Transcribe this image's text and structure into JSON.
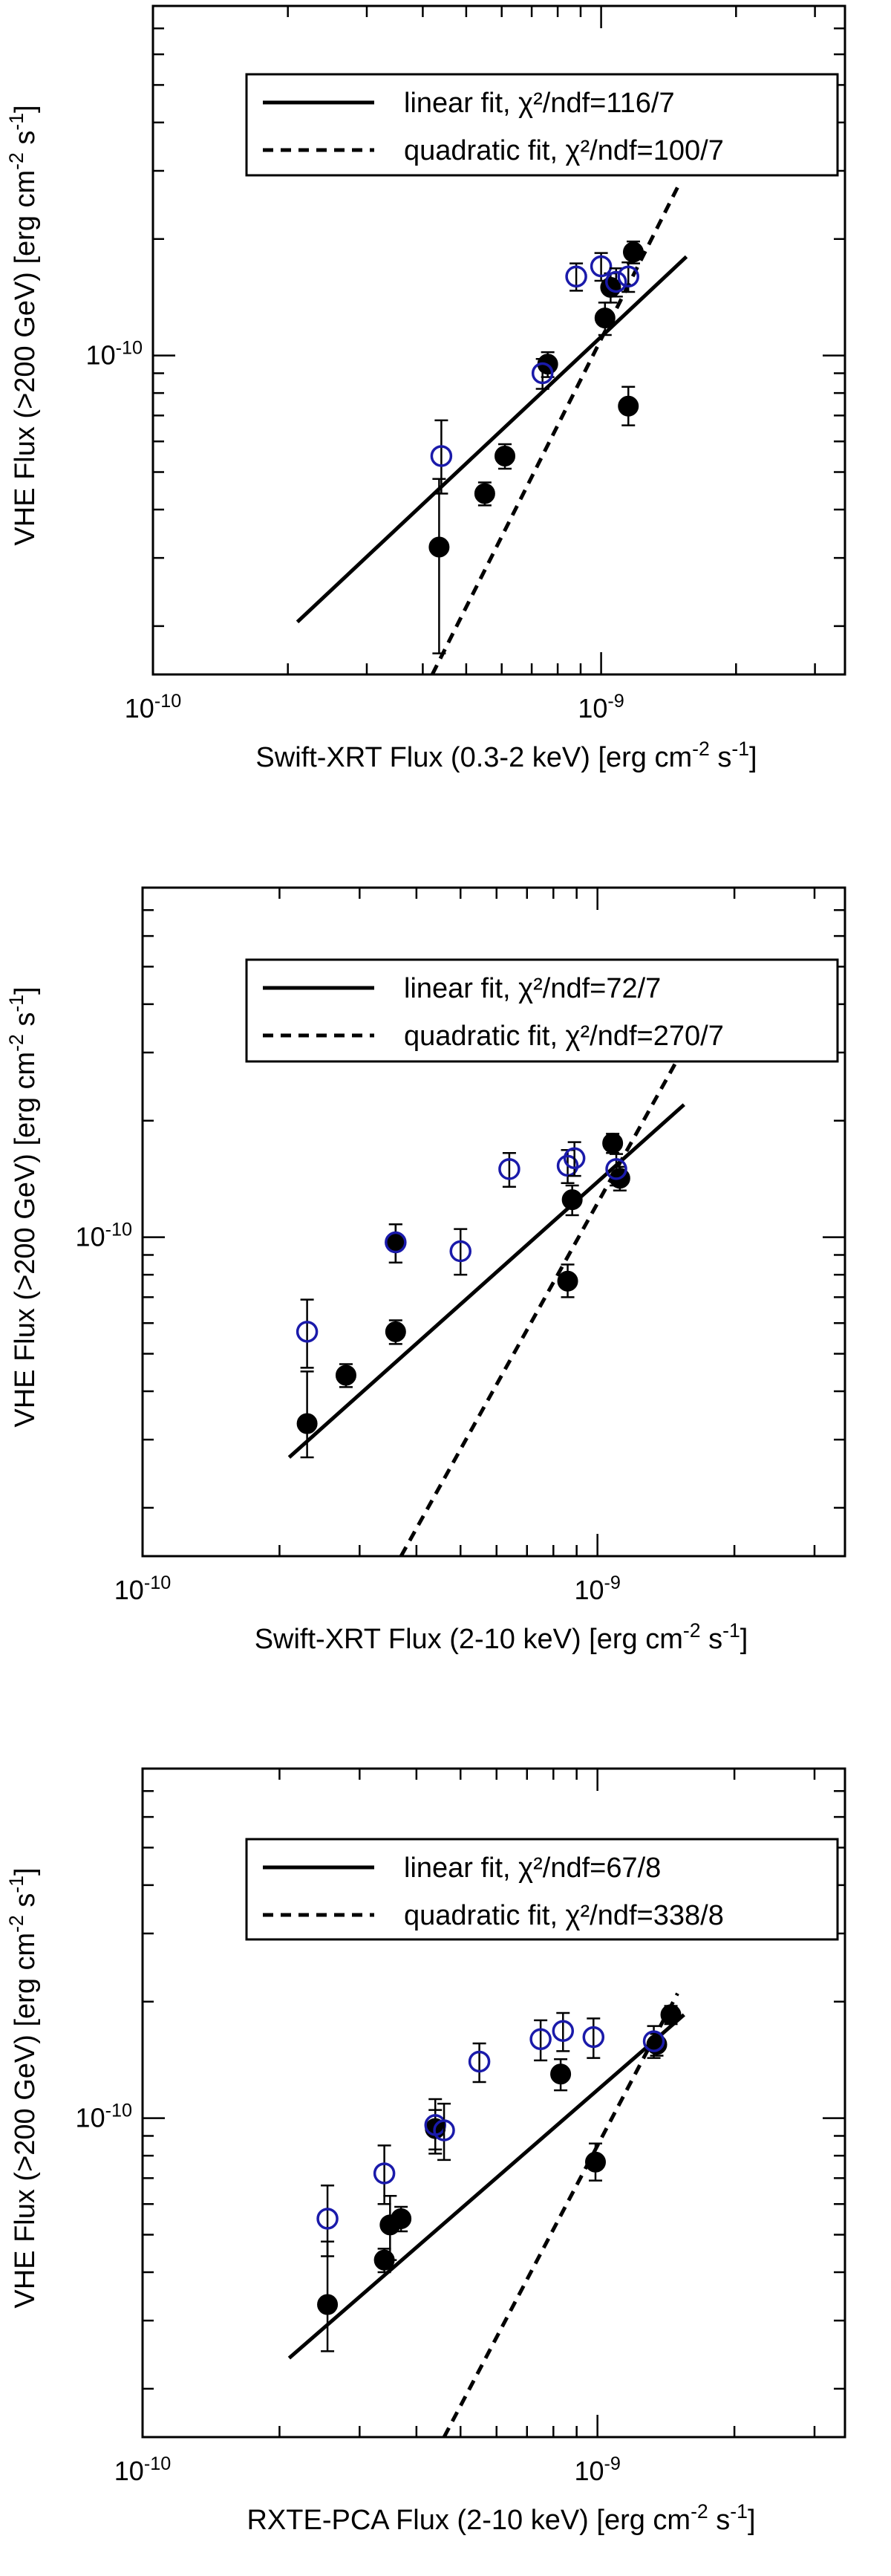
{
  "colors": {
    "filled": "#000000",
    "open": "#1a1aaa",
    "fit": "#000000"
  },
  "chart_data": [
    {
      "type": "scatter",
      "xlabel": "Swift-XRT Flux (0.3-2 keV) [erg cm^-2 s^-1]",
      "ylabel": "VHE Flux (>200 GeV) [erg cm^-2 s^-1]",
      "x_scale": "log",
      "y_scale": "log",
      "xlim": [
        1e-10,
        3.5e-09
      ],
      "ylim": [
        1.5e-11,
        8e-10
      ],
      "x_tick_labels": [
        {
          "value": 1e-10,
          "text": "10^-10"
        },
        {
          "value": 1e-09,
          "text": "10^-9"
        }
      ],
      "y_tick_labels": [
        {
          "value": 1e-10,
          "text": "10^-10"
        }
      ],
      "legend": {
        "position": "top-right",
        "entries": [
          {
            "style": "solid",
            "text": "linear fit, χ²/ndf=116/7"
          },
          {
            "style": "dashed",
            "text": "quadratic fit, χ²/ndf=100/7"
          }
        ]
      },
      "fits": [
        {
          "name": "linear fit",
          "style": "solid",
          "x": [
            2.1e-10,
            1.55e-09
          ],
          "y": [
            2.05e-11,
            1.8e-10
          ]
        },
        {
          "name": "quadratic fit",
          "style": "dashed",
          "x": [
            4.2e-10,
            1.5e-09
          ],
          "y": [
            1.5e-11,
            2.8e-10
          ]
        }
      ],
      "series": [
        {
          "marker": "filled",
          "points": [
            {
              "x": 4.35e-10,
              "y": 3.2e-11,
              "err": [
                1.5e-11,
                1.6e-11
              ]
            },
            {
              "x": 5.5e-10,
              "y": 4.4e-11,
              "err": [
                3e-12,
                3e-12
              ]
            },
            {
              "x": 6.1e-10,
              "y": 5.5e-11,
              "err": [
                4e-12,
                4e-12
              ]
            },
            {
              "x": 7.6e-10,
              "y": 9.5e-11,
              "err": [
                7e-12,
                7e-12
              ]
            },
            {
              "x": 1.02e-09,
              "y": 1.25e-10,
              "err": [
                1.2e-11,
                1.2e-11
              ]
            },
            {
              "x": 1.05e-09,
              "y": 1.5e-10,
              "err": [
                1.3e-11,
                1.3e-11
              ]
            },
            {
              "x": 1.15e-09,
              "y": 7.4e-11,
              "err": [
                8e-12,
                9e-12
              ]
            },
            {
              "x": 1.18e-09,
              "y": 1.85e-10,
              "err": [
                1.2e-11,
                1.2e-11
              ]
            }
          ]
        },
        {
          "marker": "open",
          "points": [
            {
              "x": 4.4e-10,
              "y": 5.5e-11,
              "err": [
                1.1e-11,
                1.3e-11
              ]
            },
            {
              "x": 7.4e-10,
              "y": 9e-11,
              "err": [
                8e-12,
                8e-12
              ]
            },
            {
              "x": 8.8e-10,
              "y": 1.6e-10,
              "err": [
                1.3e-11,
                1.3e-11
              ]
            },
            {
              "x": 1e-09,
              "y": 1.7e-10,
              "err": [
                1.4e-11,
                1.4e-11
              ]
            },
            {
              "x": 1.08e-09,
              "y": 1.55e-10,
              "err": [
                1.3e-11,
                1.3e-11
              ]
            },
            {
              "x": 1.15e-09,
              "y": 1.6e-10,
              "err": [
                1.4e-11,
                1.4e-11
              ]
            }
          ]
        }
      ]
    },
    {
      "type": "scatter",
      "xlabel": "Swift-XRT Flux (2-10 keV) [erg cm^-2 s^-1]",
      "ylabel": "VHE Flux (>200 GeV) [erg cm^-2 s^-1]",
      "x_scale": "log",
      "y_scale": "log",
      "xlim": [
        1e-10,
        3.5e-09
      ],
      "ylim": [
        1.5e-11,
        8e-10
      ],
      "x_tick_labels": [
        {
          "value": 1e-10,
          "text": "10^-10"
        },
        {
          "value": 1e-09,
          "text": "10^-9"
        }
      ],
      "y_tick_labels": [
        {
          "value": 1e-10,
          "text": "10^-10"
        }
      ],
      "legend": {
        "position": "top-right",
        "entries": [
          {
            "style": "solid",
            "text": "linear fit, χ²/ndf=72/7"
          },
          {
            "style": "dashed",
            "text": "quadratic fit, χ²/ndf=270/7"
          }
        ]
      },
      "fits": [
        {
          "name": "linear fit",
          "style": "solid",
          "x": [
            2.1e-10,
            1.55e-09
          ],
          "y": [
            2.7e-11,
            2.2e-10
          ]
        },
        {
          "name": "quadratic fit",
          "style": "dashed",
          "x": [
            3.7e-10,
            1.6e-09
          ],
          "y": [
            1.5e-11,
            3.3e-10
          ]
        }
      ],
      "series": [
        {
          "marker": "filled",
          "points": [
            {
              "x": 2.3e-10,
              "y": 3.3e-11,
              "err": [
                6e-12,
                1.2e-11
              ]
            },
            {
              "x": 2.8e-10,
              "y": 4.4e-11,
              "err": [
                3e-12,
                3e-12
              ]
            },
            {
              "x": 3.6e-10,
              "y": 5.7e-11,
              "err": [
                4e-12,
                4e-12
              ]
            },
            {
              "x": 3.6e-10,
              "y": 9.7e-11,
              "err": [
                1.1e-11,
                1.1e-11
              ]
            },
            {
              "x": 8.6e-10,
              "y": 7.7e-11,
              "err": [
                7e-12,
                8e-12
              ]
            },
            {
              "x": 8.8e-10,
              "y": 1.25e-10,
              "err": [
                1.1e-11,
                1.1e-11
              ]
            },
            {
              "x": 1.08e-09,
              "y": 1.75e-10,
              "err": [
                1e-11,
                1e-11
              ]
            },
            {
              "x": 1.12e-09,
              "y": 1.42e-10,
              "err": [
                1e-11,
                1e-11
              ]
            }
          ]
        },
        {
          "marker": "open",
          "points": [
            {
              "x": 2.3e-10,
              "y": 5.7e-11,
              "err": [
                1.1e-11,
                1.2e-11
              ]
            },
            {
              "x": 3.6e-10,
              "y": 9.7e-11,
              "err": [
                1.1e-11,
                1.1e-11
              ]
            },
            {
              "x": 5e-10,
              "y": 9.2e-11,
              "err": [
                1.2e-11,
                1.3e-11
              ]
            },
            {
              "x": 6.4e-10,
              "y": 1.5e-10,
              "err": [
                1.5e-11,
                1.5e-11
              ]
            },
            {
              "x": 8.6e-10,
              "y": 1.53e-10,
              "err": [
                1.5e-11,
                1.5e-11
              ]
            },
            {
              "x": 8.9e-10,
              "y": 1.6e-10,
              "err": [
                1.6e-11,
                1.6e-11
              ]
            },
            {
              "x": 1.1e-09,
              "y": 1.5e-10,
              "err": [
                1.4e-11,
                1.4e-11
              ]
            }
          ]
        }
      ]
    },
    {
      "type": "scatter",
      "xlabel": "RXTE-PCA Flux (2-10 keV) [erg cm^-2 s^-1]",
      "ylabel": "VHE Flux (>200 GeV) [erg cm^-2 s^-1]",
      "x_scale": "log",
      "y_scale": "log",
      "xlim": [
        1e-10,
        3.5e-09
      ],
      "ylim": [
        1.5e-11,
        8e-10
      ],
      "x_tick_labels": [
        {
          "value": 1e-10,
          "text": "10^-10"
        },
        {
          "value": 1e-09,
          "text": "10^-9"
        }
      ],
      "y_tick_labels": [
        {
          "value": 1e-10,
          "text": "10^-10"
        }
      ],
      "legend": {
        "position": "top-right",
        "entries": [
          {
            "style": "solid",
            "text": "linear fit, χ²/ndf=67/8"
          },
          {
            "style": "dashed",
            "text": "quadratic fit, χ²/ndf=338/8"
          }
        ]
      },
      "fits": [
        {
          "name": "linear fit",
          "style": "solid",
          "x": [
            2.1e-10,
            1.55e-09
          ],
          "y": [
            2.4e-11,
            1.85e-10
          ]
        },
        {
          "name": "quadratic fit",
          "style": "dashed",
          "x": [
            4.6e-10,
            1.5e-09
          ],
          "y": [
            1.5e-11,
            2.1e-10
          ]
        }
      ],
      "series": [
        {
          "marker": "filled",
          "points": [
            {
              "x": 2.55e-10,
              "y": 3.3e-11,
              "err": [
                8e-12,
                1.5e-11
              ]
            },
            {
              "x": 3.4e-10,
              "y": 4.3e-11,
              "err": [
                3e-12,
                3e-12
              ]
            },
            {
              "x": 3.5e-10,
              "y": 5.3e-11,
              "err": [
                1e-11,
                1e-11
              ]
            },
            {
              "x": 3.7e-10,
              "y": 5.5e-11,
              "err": [
                4e-12,
                4e-12
              ]
            },
            {
              "x": 4.4e-10,
              "y": 9.4e-11,
              "err": [
                1.1e-11,
                1.1e-11
              ]
            },
            {
              "x": 8.3e-10,
              "y": 1.3e-10,
              "err": [
                1.2e-11,
                1.2e-11
              ]
            },
            {
              "x": 9.9e-10,
              "y": 7.7e-11,
              "err": [
                8e-12,
                9e-12
              ]
            },
            {
              "x": 1.35e-09,
              "y": 1.55e-10,
              "err": [
                1e-11,
                1e-11
              ]
            },
            {
              "x": 1.45e-09,
              "y": 1.85e-10,
              "err": [
                1e-11,
                1e-11
              ]
            }
          ]
        },
        {
          "marker": "open",
          "points": [
            {
              "x": 2.55e-10,
              "y": 5.5e-11,
              "err": [
                1.1e-11,
                1.2e-11
              ]
            },
            {
              "x": 3.4e-10,
              "y": 7.2e-11,
              "err": [
                1.2e-11,
                1.3e-11
              ]
            },
            {
              "x": 4.4e-10,
              "y": 9.6e-11,
              "err": [
                1.5e-11,
                1.6e-11
              ]
            },
            {
              "x": 4.6e-10,
              "y": 9.3e-11,
              "err": [
                1.5e-11,
                1.6e-11
              ]
            },
            {
              "x": 5.5e-10,
              "y": 1.4e-10,
              "err": [
                1.6e-11,
                1.6e-11
              ]
            },
            {
              "x": 7.5e-10,
              "y": 1.6e-10,
              "err": [
                1.9e-11,
                1.9e-11
              ]
            },
            {
              "x": 8.4e-10,
              "y": 1.68e-10,
              "err": [
                1.9e-11,
                1.9e-11
              ]
            },
            {
              "x": 9.8e-10,
              "y": 1.62e-10,
              "err": [
                1.9e-11,
                1.9e-11
              ]
            },
            {
              "x": 1.33e-09,
              "y": 1.58e-10,
              "err": [
                1.5e-11,
                1.5e-11
              ]
            }
          ]
        }
      ]
    }
  ]
}
